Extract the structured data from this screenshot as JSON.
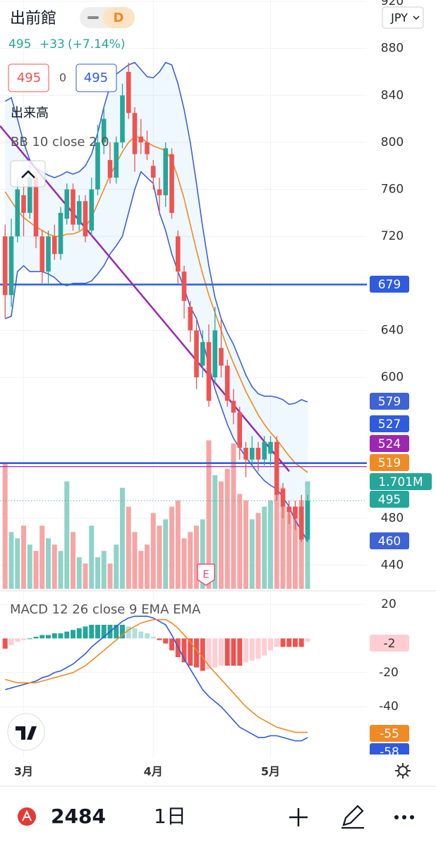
{
  "header": {
    "symbol": "出前館",
    "interval_badge": "D",
    "price": 495,
    "change": "+33",
    "change_pct": "(+7.14%)",
    "sell": 495,
    "spread": 0,
    "buy": 495,
    "currency": "JPY"
  },
  "chart_data": {
    "type": "candlestick",
    "categories": [
      null,
      null,
      null,
      "3月",
      null,
      null,
      null,
      null,
      null,
      null,
      null,
      null,
      null,
      null,
      null,
      null,
      null,
      null,
      null,
      null,
      null,
      null,
      null,
      null,
      "4月",
      null,
      null,
      null,
      null,
      null,
      null,
      null,
      null,
      null,
      null,
      null,
      null,
      null,
      null,
      null,
      null,
      null,
      null,
      "5月",
      null,
      null,
      null,
      null,
      null,
      null
    ],
    "open": [
      720,
      670,
      720,
      755,
      740,
      770,
      720,
      690,
      720,
      705,
      735,
      760,
      730,
      750,
      725,
      760,
      800,
      785,
      770,
      800,
      860,
      825,
      805,
      800,
      780,
      760,
      755,
      790,
      720,
      690,
      660,
      640,
      610,
      630,
      600,
      625,
      610,
      580,
      570,
      540,
      530,
      540,
      530,
      535,
      545,
      505,
      490,
      490,
      490,
      462
    ],
    "high": [
      730,
      735,
      770,
      765,
      780,
      775,
      725,
      725,
      730,
      745,
      765,
      765,
      755,
      755,
      770,
      815,
      830,
      800,
      805,
      850,
      868,
      830,
      820,
      810,
      785,
      770,
      800,
      795,
      725,
      695,
      665,
      650,
      640,
      645,
      660,
      650,
      615,
      590,
      575,
      545,
      550,
      545,
      550,
      550,
      550,
      510,
      495,
      495,
      500,
      500
    ],
    "low": [
      650,
      660,
      715,
      720,
      735,
      710,
      680,
      680,
      700,
      700,
      730,
      725,
      725,
      715,
      720,
      755,
      790,
      765,
      765,
      795,
      820,
      775,
      790,
      785,
      760,
      740,
      745,
      735,
      680,
      650,
      630,
      590,
      600,
      575,
      595,
      600,
      575,
      560,
      530,
      515,
      525,
      520,
      525,
      525,
      495,
      480,
      475,
      470,
      460,
      460
    ],
    "close": [
      670,
      720,
      760,
      740,
      770,
      720,
      690,
      720,
      705,
      740,
      760,
      730,
      750,
      720,
      760,
      800,
      820,
      770,
      800,
      840,
      825,
      790,
      800,
      790,
      770,
      755,
      795,
      740,
      690,
      665,
      640,
      600,
      630,
      580,
      640,
      610,
      580,
      570,
      540,
      530,
      540,
      530,
      545,
      545,
      500,
      490,
      485,
      480,
      462,
      495
    ],
    "up_color": "#26a69a",
    "down_color": "#ef5350",
    "ylim": [
      420,
      920
    ],
    "yticks": [
      920,
      880,
      840,
      800,
      760,
      720,
      640,
      600,
      480,
      440
    ],
    "grid": true,
    "volume": {
      "label": "出来高",
      "ylim": [
        0,
        9.3
      ],
      "last_label": "1.701M",
      "up_color": "#8fd3c8",
      "down_color": "#f6a5a5",
      "values": [
        2.0,
        0.9,
        0.8,
        1.0,
        0.7,
        0.6,
        1.0,
        0.8,
        0.7,
        0.6,
        1.7,
        0.9,
        0.5,
        0.4,
        1.0,
        0.5,
        0.6,
        0.4,
        0.7,
        1.6,
        1.3,
        0.9,
        0.6,
        0.7,
        1.2,
        1.0,
        1.1,
        1.3,
        1.4,
        0.8,
        0.9,
        1.0,
        1.1,
        2.35,
        1.8,
        1.7,
        1.9,
        2.3,
        1.5,
        1.4,
        1.1,
        1.2,
        1.3,
        1.4,
        1.5,
        1.6,
        1.2,
        1.3,
        1.4,
        1.701
      ]
    },
    "bb": {
      "label": "BB 10 close 2 0",
      "band_color": "#3f62d4",
      "middle_color": "#f08a24",
      "fill": "rgba(33,150,243,0.07)",
      "upper": [
        835,
        838,
        820,
        800,
        785,
        778,
        775,
        772,
        770,
        772,
        775,
        773,
        775,
        780,
        790,
        808,
        830,
        848,
        858,
        862,
        866,
        868,
        862,
        856,
        855,
        860,
        868,
        866,
        850,
        828,
        800,
        765,
        728,
        695,
        668,
        650,
        638,
        628,
        615,
        602,
        592,
        586,
        584,
        584,
        583,
        581,
        577,
        578,
        581,
        579
      ],
      "middle": [
        758,
        750,
        742,
        736,
        732,
        728,
        725,
        722,
        720,
        720,
        722,
        722,
        724,
        728,
        736,
        748,
        760,
        772,
        782,
        792,
        800,
        805,
        804,
        800,
        797,
        795,
        793,
        785,
        770,
        752,
        730,
        708,
        688,
        670,
        655,
        640,
        625,
        612,
        600,
        588,
        578,
        568,
        560,
        553,
        547,
        540,
        533,
        527,
        523,
        519
      ],
      "lower": [
        650,
        652,
        690,
        695,
        690,
        690,
        690,
        688,
        685,
        680,
        678,
        680,
        680,
        680,
        682,
        688,
        695,
        705,
        712,
        720,
        740,
        760,
        775,
        770,
        765,
        740,
        725,
        705,
        690,
        676,
        660,
        650,
        632,
        610,
        590,
        575,
        560,
        548,
        540,
        532,
        525,
        518,
        512,
        508,
        505,
        498,
        490,
        478,
        470,
        460
      ]
    },
    "hlines": [
      {
        "value": 679,
        "color": "#2f5bdc"
      },
      {
        "value": 527,
        "color": "#2f5bdc"
      },
      {
        "value": 524,
        "color": "#9c27b0"
      }
    ],
    "trendline": {
      "start": 814,
      "end": 520,
      "color": "#9c27b0"
    },
    "earnings_marker": "E",
    "macd": {
      "label": "MACD 12 26 close 9 EMA EMA",
      "ylim": [
        -68,
        27
      ],
      "yticks": [
        20,
        -20,
        -40
      ],
      "macd_color": "#2f5bdc",
      "signal_color": "#f08a24",
      "macd": [
        -30,
        -29,
        -28,
        -27,
        -26,
        -25,
        -23,
        -22,
        -20,
        -19,
        -17,
        -15,
        -12,
        -9,
        -5,
        -2,
        1,
        4,
        7,
        10,
        12,
        13,
        13,
        13,
        12,
        10,
        8,
        2,
        -5,
        -12,
        -18,
        -24,
        -30,
        -34,
        -37,
        -40,
        -44,
        -48,
        -52,
        -54,
        -56,
        -58,
        -58,
        -57,
        -57,
        -58,
        -59,
        -60,
        -60,
        -58
      ],
      "signal": [
        -24,
        -25,
        -26,
        -26,
        -26,
        -26,
        -25,
        -24,
        -23,
        -22,
        -21,
        -20,
        -18,
        -16,
        -13,
        -10,
        -7,
        -4,
        -1,
        2,
        5,
        7,
        9,
        10,
        11,
        11,
        11,
        9,
        6,
        2,
        -2,
        -7,
        -11,
        -16,
        -20,
        -24,
        -28,
        -32,
        -36,
        -40,
        -43,
        -46,
        -48,
        -50,
        -52,
        -53,
        -54,
        -55,
        -55,
        -55
      ],
      "histogram": [
        -6,
        -4,
        -2,
        -1,
        0,
        1,
        2,
        2,
        3,
        3,
        4,
        5,
        6,
        7,
        8,
        8,
        8,
        8,
        8,
        8,
        7,
        6,
        4,
        3,
        1,
        -1,
        -3,
        -7,
        -11,
        -14,
        -16,
        -17,
        -19,
        -18,
        -17,
        -16,
        -16,
        -16,
        -16,
        -14,
        -13,
        -12,
        -10,
        -7,
        -5,
        -5,
        -5,
        -5,
        -5,
        -2
      ]
    }
  },
  "toolbar": {
    "symbol_code": "2484",
    "timeframe": "1日"
  }
}
